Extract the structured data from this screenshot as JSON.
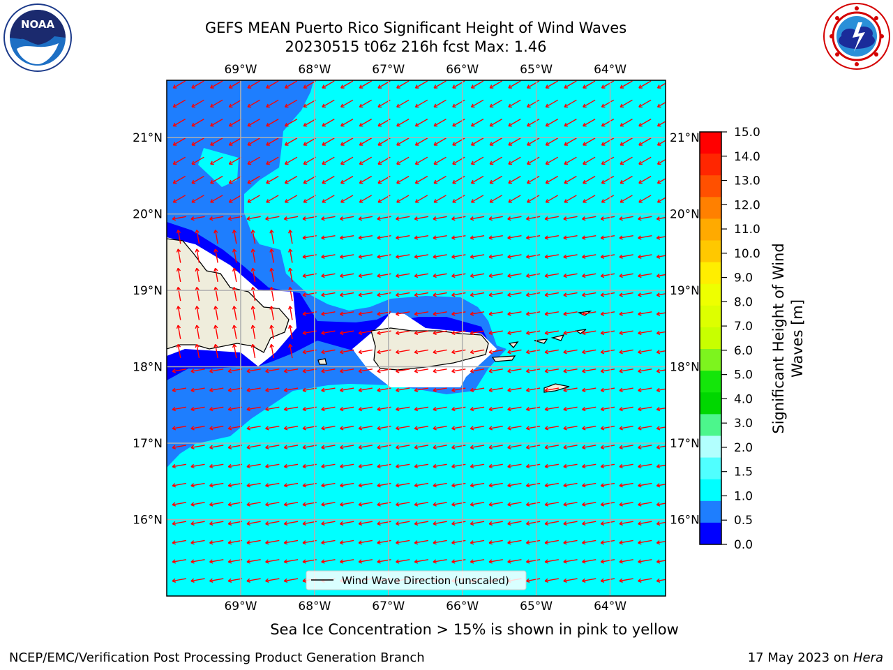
{
  "title": {
    "line1": "GEFS MEAN Puerto Rico Significant Height of Wind Waves",
    "line2": "20230515 t06z 216h fcst   Max: 1.46"
  },
  "logos": {
    "left": {
      "icon": "noaa-logo-icon",
      "text": "NOAA"
    },
    "right": {
      "icon": "nws-logo-icon"
    }
  },
  "map": {
    "lon_ticks": [
      "69°W",
      "68°W",
      "67°W",
      "66°W",
      "65°W",
      "64°W"
    ],
    "lat_ticks": [
      "21°N",
      "20°N",
      "19°N",
      "18°N",
      "17°N",
      "16°N"
    ],
    "lon_values": [
      -69,
      -68,
      -67,
      -66,
      -65,
      -64
    ],
    "lat_values": [
      21,
      20,
      19,
      18,
      17,
      16
    ],
    "lon_range": [
      -70,
      -63.25
    ],
    "lat_range": [
      15,
      21.75
    ],
    "grid": true,
    "colors": {
      "land": "#efeddc",
      "level_0_05": "#0000ff",
      "level_05_1": "#1e7efe",
      "level_1_15": "#00ffff",
      "arrow": "#ff0000",
      "grid": "#b0b0b0"
    },
    "legend_label": "Wind Wave Direction (unscaled)"
  },
  "colorbar": {
    "label": "Significant Height of Wind Waves [m]",
    "label_line1": "Significant Height of Wind",
    "label_line2": "Waves [m]",
    "ticks": [
      "15.0",
      "14.0",
      "13.0",
      "12.0",
      "11.0",
      "10.0",
      "9.0",
      "8.0",
      "7.0",
      "6.0",
      "5.0",
      "4.0",
      "3.0",
      "2.0",
      "1.5",
      "1.0",
      "0.5",
      "0.0"
    ],
    "colors": [
      "#ff0000",
      "#ff2600",
      "#ff5000",
      "#ff8000",
      "#ffaa00",
      "#ffc800",
      "#ffee00",
      "#eeff00",
      "#ddff00",
      "#c8ff00",
      "#7df41e",
      "#14e60a",
      "#00d700",
      "#4cf68c",
      "#b2fffe",
      "#50ffff",
      "#00ffff",
      "#1e7efe",
      "#0000ff"
    ]
  },
  "caption": "Sea Ice Concentration > 15% is shown in pink to yellow",
  "footer": {
    "left": "NCEP/EMC/Verification Post Processing Product Generation Branch",
    "right_prefix": "17 May 2023 on ",
    "right_host": "Hera"
  }
}
